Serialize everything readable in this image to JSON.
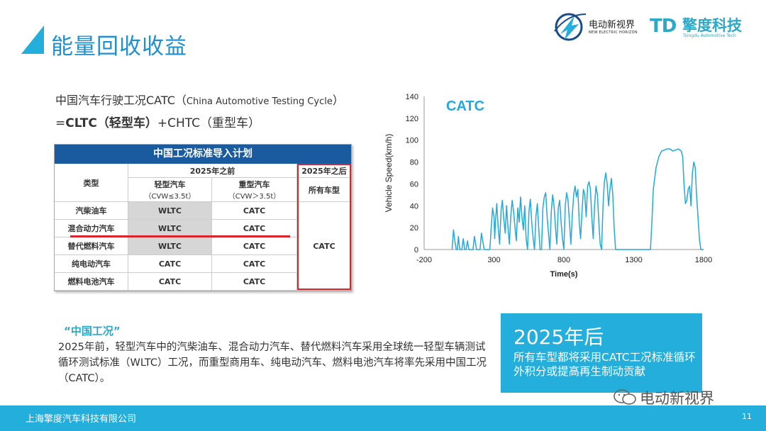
{
  "header": {
    "title": "能量回收收益",
    "logo1": {
      "name": "电动新视界",
      "sub": "NEW ELECTRIC HORIZON"
    },
    "logo2": {
      "mark": "TD",
      "name": "擎度科技",
      "sub": "Tsingdu Automotive Tech"
    }
  },
  "intro": {
    "line1_main": "中国汽车行驶工况CATC（",
    "line1_en": "China Automotive Testing Cycle",
    "line1_close": "）",
    "line2_prefix": "=",
    "line2_bold": "CLTC（轻型车）",
    "line2_rest": "+CHTC（重型车）"
  },
  "table": {
    "title": "中国工况标准导入计划",
    "col_type": "类型",
    "before_2025": "2025年之前",
    "after_2025": "2025年之后",
    "light": "轻型汽车",
    "light_sub": "（CVW≤3.5t）",
    "heavy": "重型汽车",
    "heavy_sub": "（CVW＞3.5t）",
    "all": "所有车型",
    "after_value": "CATC",
    "rows": [
      {
        "type": "汽柴油车",
        "light": "WLTC",
        "heavy": "CATC"
      },
      {
        "type": "混合动力汽车",
        "light": "WLTC",
        "heavy": "CATC"
      },
      {
        "type": "替代燃料汽车",
        "light": "WLTC",
        "heavy": "CATC"
      },
      {
        "type": "纯电动汽车",
        "light": "CATC",
        "heavy": "CATC"
      },
      {
        "type": "燃料电池汽车",
        "light": "CATC",
        "heavy": "CATC"
      }
    ]
  },
  "chart_data": {
    "type": "line",
    "title": "CATC",
    "xlabel": "Time(s)",
    "ylabel": "Vehicle Speed(km/h)",
    "xlim": [
      -200,
      1800
    ],
    "ylim": [
      0,
      140
    ],
    "xticks": [
      -200,
      300,
      800,
      1300,
      1800
    ],
    "yticks": [
      0,
      20,
      40,
      60,
      80,
      100,
      120,
      140
    ],
    "grid": false,
    "color": "#23a9dc",
    "series": [
      {
        "x": [
          0,
          10,
          20,
          30,
          38,
          45,
          55,
          70,
          80,
          90,
          100,
          110,
          120,
          140,
          150,
          160,
          175,
          190,
          200,
          210,
          230,
          250,
          270,
          280,
          290,
          300,
          305,
          310,
          320,
          330,
          340,
          350,
          360,
          370,
          380,
          390,
          400,
          410,
          420,
          430,
          440,
          450,
          460,
          470,
          480,
          490,
          500,
          510,
          520,
          530,
          540,
          550,
          560,
          570,
          580,
          590,
          600,
          610,
          620,
          630,
          640,
          650,
          660,
          670,
          680,
          690,
          700,
          710,
          720,
          730,
          740,
          750,
          760,
          770,
          780,
          790,
          800,
          810,
          820,
          830,
          840,
          850,
          860,
          870,
          880,
          890,
          900,
          910,
          920,
          930,
          940,
          950,
          960,
          970,
          980,
          990,
          1000,
          1010,
          1020,
          1030,
          1040,
          1050,
          1060,
          1070,
          1080,
          1090,
          1100,
          1110,
          1120,
          1130,
          1140,
          1150,
          1160,
          1170,
          1180,
          1190,
          1200,
          1210,
          1220,
          1230,
          1240,
          1250,
          1260,
          1270,
          1280,
          1290,
          1300,
          1340,
          1400,
          1410,
          1420,
          1430,
          1440,
          1460,
          1480,
          1500,
          1520,
          1540,
          1560,
          1580,
          1600,
          1620,
          1640,
          1650,
          1660,
          1670,
          1680,
          1690,
          1700,
          1710,
          1720,
          1730,
          1740,
          1750,
          1760,
          1770,
          1780,
          1790,
          1800
        ],
        "y": [
          0,
          18,
          8,
          0,
          0,
          12,
          0,
          0,
          10,
          0,
          0,
          8,
          0,
          0,
          0,
          12,
          0,
          0,
          0,
          15,
          0,
          0,
          0,
          20,
          38,
          30,
          10,
          25,
          42,
          20,
          5,
          35,
          45,
          28,
          15,
          40,
          20,
          5,
          30,
          45,
          35,
          20,
          8,
          38,
          25,
          48,
          30,
          18,
          40,
          10,
          0,
          35,
          46,
          25,
          10,
          0,
          30,
          42,
          20,
          0,
          0,
          38,
          48,
          52,
          30,
          15,
          0,
          35,
          50,
          40,
          20,
          5,
          38,
          45,
          25,
          10,
          0,
          40,
          52,
          45,
          25,
          5,
          30,
          50,
          58,
          48,
          55,
          25,
          10,
          35,
          55,
          50,
          30,
          58,
          62,
          55,
          30,
          10,
          40,
          58,
          50,
          25,
          5,
          0,
          40,
          62,
          70,
          60,
          40,
          55,
          65,
          50,
          20,
          0,
          0,
          0,
          0,
          0,
          0,
          0,
          0,
          0,
          0,
          0,
          0,
          0,
          0,
          0,
          0,
          0,
          0,
          25,
          55,
          75,
          85,
          90,
          91,
          92,
          92,
          90,
          91,
          92,
          90,
          85,
          60,
          42,
          45,
          55,
          58,
          40,
          70,
          80,
          75,
          50,
          30,
          10,
          0,
          0,
          0
        ]
      }
    ]
  },
  "section": {
    "heading": "“中国工况”",
    "paragraph": "2025年前，轻型汽车中的汽柴油车、混合动力汽车、替代燃料汽车采用全球统一轻型车辆测试循环测试标准（WLTC）工况，而重型商用车、纯电动汽车、燃料电池汽车将率先采用中国工况（CATC）。"
  },
  "highlight": {
    "year": "2025年后",
    "desc": "所有车型都将采用CATC工况标准循环外积分或提高再生制动贡献"
  },
  "watermark": {
    "text": "电动新视界"
  },
  "footer": {
    "company": "上海擎度汽车科技有限公司",
    "page": "11"
  }
}
